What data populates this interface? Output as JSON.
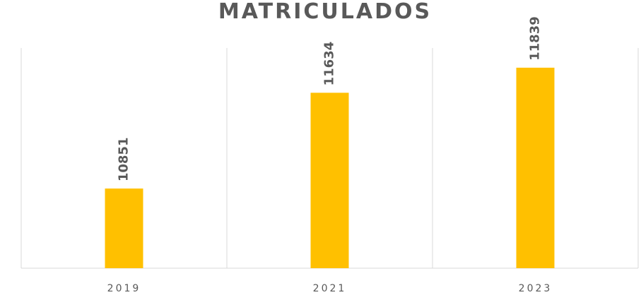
{
  "chart_data": {
    "type": "bar",
    "title": "MATRICULADOS",
    "categories": [
      "2019",
      "2021",
      "2023"
    ],
    "values": [
      10851,
      11634,
      11839
    ],
    "color": "#ffc000",
    "ylim": [
      10200,
      12000
    ],
    "grid": true
  }
}
